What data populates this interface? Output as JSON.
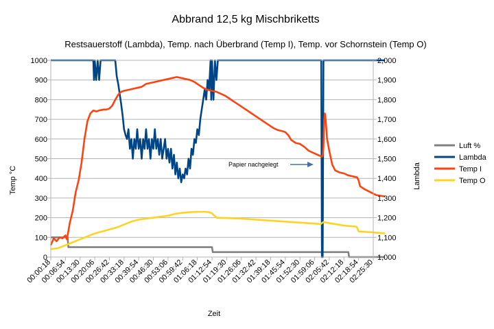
{
  "chart_data": {
    "type": "line",
    "title": "Abbrand 12,5 kg Mischbriketts",
    "subtitle": "Restsauerstoff (Lambda), Temp. nach Überbrand (Temp I), Temp. vor Schornstein (Temp O)",
    "xlabel": "Zeit",
    "ylabel_left": "Temp °C",
    "ylabel_right": "Lambda",
    "ylim_left": [
      0,
      1000
    ],
    "ylim_right": [
      1.0,
      2.0
    ],
    "y_ticks_left": [
      "0",
      "100",
      "200",
      "300",
      "400",
      "500",
      "600",
      "700",
      "800",
      "900",
      "1000"
    ],
    "y_ticks_right": [
      "1,000",
      "1,100",
      "1,200",
      "1,300",
      "1,400",
      "1,500",
      "1,600",
      "1,700",
      "1,800",
      "1,900",
      "2,000"
    ],
    "x_ticks": [
      "00:00:18",
      "00:06:54",
      "00:13:30",
      "00:20:06",
      "00:26:42",
      "00:33:18",
      "00:39:54",
      "00:46:30",
      "00:53:06",
      "00:59:42",
      "01:06:18",
      "01:12:54",
      "01:19:30",
      "01:26:06",
      "01:32:42",
      "01:39:18",
      "01:45:54",
      "01:52:30",
      "01:59:06",
      "02:05:42",
      "02:12:18",
      "02:18:54",
      "02:25:30"
    ],
    "grid": true,
    "legend_position": "right",
    "annotation": {
      "text": "Papier nachgelegt",
      "x_index": 18.7,
      "y": 475
    },
    "series": [
      {
        "name": "Luft %",
        "axis": "left",
        "color": "#808080",
        "points": [
          [
            0,
            100
          ],
          [
            1.15,
            100
          ],
          [
            1.2,
            50
          ],
          [
            11.0,
            50
          ],
          [
            11.05,
            25
          ],
          [
            20.3,
            25
          ],
          [
            20.35,
            0
          ],
          [
            22.8,
            0
          ]
        ]
      },
      {
        "name": "Lambda",
        "axis": "right",
        "color": "#004586",
        "points": [
          [
            0,
            2.0
          ],
          [
            2.9,
            2.0
          ],
          [
            2.95,
            1.9
          ],
          [
            3.0,
            2.0
          ],
          [
            3.1,
            1.9
          ],
          [
            3.2,
            2.0
          ],
          [
            3.3,
            1.9
          ],
          [
            3.4,
            2.0
          ],
          [
            4.4,
            2.0
          ],
          [
            4.5,
            1.92
          ],
          [
            4.6,
            1.88
          ],
          [
            4.7,
            1.83
          ],
          [
            4.8,
            1.78
          ],
          [
            4.9,
            1.72
          ],
          [
            5.0,
            1.65
          ],
          [
            5.1,
            1.62
          ],
          [
            5.2,
            1.6
          ],
          [
            5.3,
            1.65
          ],
          [
            5.4,
            1.55
          ],
          [
            5.5,
            1.6
          ],
          [
            5.6,
            1.5
          ],
          [
            5.7,
            1.6
          ],
          [
            5.8,
            1.55
          ],
          [
            5.9,
            1.65
          ],
          [
            6.0,
            1.55
          ],
          [
            6.1,
            1.6
          ],
          [
            6.2,
            1.5
          ],
          [
            6.3,
            1.6
          ],
          [
            6.4,
            1.55
          ],
          [
            6.5,
            1.65
          ],
          [
            6.6,
            1.55
          ],
          [
            6.7,
            1.6
          ],
          [
            6.8,
            1.5
          ],
          [
            6.9,
            1.6
          ],
          [
            7.0,
            1.55
          ],
          [
            7.1,
            1.65
          ],
          [
            7.2,
            1.55
          ],
          [
            7.3,
            1.6
          ],
          [
            7.4,
            1.52
          ],
          [
            7.5,
            1.6
          ],
          [
            7.6,
            1.5
          ],
          [
            7.7,
            1.55
          ],
          [
            7.8,
            1.6
          ],
          [
            7.9,
            1.5
          ],
          [
            8.0,
            1.55
          ],
          [
            8.1,
            1.48
          ],
          [
            8.2,
            1.55
          ],
          [
            8.3,
            1.45
          ],
          [
            8.4,
            1.52
          ],
          [
            8.5,
            1.42
          ],
          [
            8.6,
            1.48
          ],
          [
            8.7,
            1.4
          ],
          [
            8.8,
            1.45
          ],
          [
            8.9,
            1.38
          ],
          [
            9.0,
            1.42
          ],
          [
            9.1,
            1.4
          ],
          [
            9.2,
            1.45
          ],
          [
            9.3,
            1.42
          ],
          [
            9.4,
            1.5
          ],
          [
            9.5,
            1.45
          ],
          [
            9.6,
            1.55
          ],
          [
            9.7,
            1.52
          ],
          [
            9.8,
            1.6
          ],
          [
            9.9,
            1.58
          ],
          [
            10.0,
            1.65
          ],
          [
            10.1,
            1.62
          ],
          [
            10.2,
            1.7
          ],
          [
            10.3,
            1.75
          ],
          [
            10.4,
            1.8
          ],
          [
            10.5,
            1.85
          ],
          [
            10.6,
            1.8
          ],
          [
            10.7,
            1.9
          ],
          [
            10.8,
            1.85
          ],
          [
            10.9,
            2.0
          ],
          [
            10.95,
            1.8
          ],
          [
            11.0,
            2.0
          ],
          [
            11.1,
            1.8
          ],
          [
            11.2,
            2.0
          ],
          [
            11.3,
            1.9
          ],
          [
            11.4,
            2.0
          ],
          [
            18.45,
            2.0
          ],
          [
            18.5,
            1.0
          ],
          [
            18.55,
            1.0
          ],
          [
            18.6,
            2.0
          ],
          [
            22.8,
            2.0
          ]
        ]
      },
      {
        "name": "Temp I",
        "axis": "left",
        "color": "#ff420e",
        "points": [
          [
            0,
            60
          ],
          [
            0.2,
            95
          ],
          [
            0.4,
            80
          ],
          [
            0.6,
            100
          ],
          [
            0.8,
            95
          ],
          [
            1.0,
            110
          ],
          [
            1.1,
            90
          ],
          [
            1.3,
            175
          ],
          [
            1.5,
            235
          ],
          [
            1.7,
            330
          ],
          [
            1.8,
            360
          ],
          [
            1.9,
            390
          ],
          [
            2.1,
            480
          ],
          [
            2.3,
            600
          ],
          [
            2.5,
            690
          ],
          [
            2.7,
            730
          ],
          [
            2.9,
            745
          ],
          [
            3.1,
            740
          ],
          [
            3.3,
            745
          ],
          [
            3.6,
            750
          ],
          [
            3.8,
            750
          ],
          [
            4.0,
            755
          ],
          [
            4.2,
            770
          ],
          [
            4.4,
            800
          ],
          [
            4.6,
            825
          ],
          [
            4.8,
            840
          ],
          [
            5.0,
            845
          ],
          [
            5.3,
            850
          ],
          [
            5.6,
            855
          ],
          [
            5.9,
            860
          ],
          [
            6.2,
            865
          ],
          [
            6.5,
            880
          ],
          [
            6.8,
            885
          ],
          [
            7.1,
            890
          ],
          [
            7.4,
            895
          ],
          [
            7.7,
            900
          ],
          [
            8.0,
            905
          ],
          [
            8.3,
            910
          ],
          [
            8.6,
            915
          ],
          [
            8.9,
            910
          ],
          [
            9.2,
            905
          ],
          [
            9.5,
            900
          ],
          [
            9.8,
            890
          ],
          [
            10.1,
            875
          ],
          [
            10.4,
            860
          ],
          [
            10.7,
            850
          ],
          [
            11.0,
            845
          ],
          [
            11.3,
            840
          ],
          [
            11.6,
            830
          ],
          [
            11.9,
            820
          ],
          [
            12.2,
            805
          ],
          [
            12.5,
            790
          ],
          [
            12.8,
            775
          ],
          [
            13.1,
            760
          ],
          [
            13.4,
            745
          ],
          [
            13.7,
            730
          ],
          [
            14.0,
            715
          ],
          [
            14.3,
            700
          ],
          [
            14.6,
            685
          ],
          [
            14.9,
            670
          ],
          [
            15.2,
            655
          ],
          [
            15.5,
            645
          ],
          [
            15.8,
            640
          ],
          [
            16.0,
            635
          ],
          [
            16.2,
            620
          ],
          [
            16.4,
            595
          ],
          [
            16.7,
            580
          ],
          [
            17.0,
            575
          ],
          [
            17.3,
            560
          ],
          [
            17.6,
            540
          ],
          [
            17.9,
            530
          ],
          [
            18.2,
            520
          ],
          [
            18.5,
            510
          ],
          [
            18.55,
            515
          ],
          [
            18.6,
            560
          ],
          [
            18.65,
            690
          ],
          [
            18.7,
            730
          ],
          [
            18.75,
            700
          ],
          [
            18.85,
            600
          ],
          [
            19.0,
            540
          ],
          [
            19.2,
            470
          ],
          [
            19.4,
            440
          ],
          [
            19.7,
            430
          ],
          [
            20.0,
            425
          ],
          [
            20.3,
            415
          ],
          [
            20.6,
            410
          ],
          [
            20.9,
            405
          ],
          [
            21.0,
            390
          ],
          [
            21.1,
            360
          ],
          [
            21.4,
            345
          ],
          [
            21.8,
            330
          ],
          [
            22.2,
            315
          ],
          [
            22.8,
            308
          ]
        ]
      },
      {
        "name": "Temp O",
        "axis": "left",
        "color": "#ffd320",
        "points": [
          [
            0,
            40
          ],
          [
            0.5,
            45
          ],
          [
            1.0,
            60
          ],
          [
            1.5,
            75
          ],
          [
            2.0,
            90
          ],
          [
            2.5,
            105
          ],
          [
            3.0,
            120
          ],
          [
            3.5,
            130
          ],
          [
            4.0,
            140
          ],
          [
            4.5,
            150
          ],
          [
            5.0,
            165
          ],
          [
            5.5,
            180
          ],
          [
            6.0,
            190
          ],
          [
            6.5,
            195
          ],
          [
            7.0,
            200
          ],
          [
            7.5,
            205
          ],
          [
            8.0,
            210
          ],
          [
            8.5,
            220
          ],
          [
            9.0,
            225
          ],
          [
            9.5,
            228
          ],
          [
            10.0,
            230
          ],
          [
            10.5,
            230
          ],
          [
            10.8,
            228
          ],
          [
            11.0,
            222
          ],
          [
            11.3,
            200
          ],
          [
            12.0,
            198
          ],
          [
            13.0,
            195
          ],
          [
            14.0,
            190
          ],
          [
            15.0,
            185
          ],
          [
            16.0,
            180
          ],
          [
            17.0,
            175
          ],
          [
            18.0,
            170
          ],
          [
            18.4,
            167
          ],
          [
            18.6,
            178
          ],
          [
            18.8,
            175
          ],
          [
            19.2,
            170
          ],
          [
            19.6,
            165
          ],
          [
            20.0,
            160
          ],
          [
            20.4,
            157
          ],
          [
            20.8,
            155
          ],
          [
            20.9,
            150
          ],
          [
            21.0,
            130
          ],
          [
            21.5,
            128
          ],
          [
            22.0,
            125
          ],
          [
            22.8,
            120
          ]
        ]
      }
    ]
  }
}
